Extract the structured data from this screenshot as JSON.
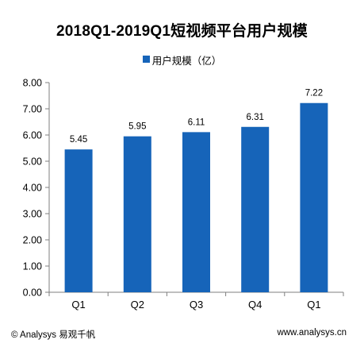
{
  "chart_data": {
    "type": "bar",
    "title": "2018Q1-2019Q1短视频平台用户规模",
    "categories": [
      "Q1",
      "Q2",
      "Q3",
      "Q4",
      "Q1"
    ],
    "series": [
      {
        "name": "用户规模（亿）",
        "values": [
          5.45,
          5.95,
          6.11,
          6.31,
          7.22
        ],
        "color": "#1664b9"
      }
    ],
    "data_labels": [
      "5.45",
      "5.95",
      "6.11",
      "6.31",
      "7.22"
    ],
    "y_ticks": [
      "0.00",
      "1.00",
      "2.00",
      "3.00",
      "4.00",
      "5.00",
      "6.00",
      "7.00",
      "8.00"
    ],
    "ylim": [
      0,
      8
    ],
    "legend_position": "top-center",
    "grid": false
  },
  "footer": {
    "source": "© Analysys 易观千帆",
    "website": "www.analysys.cn"
  },
  "colors": {
    "bar": "#1664b9",
    "axis": "#7f7f7f"
  }
}
